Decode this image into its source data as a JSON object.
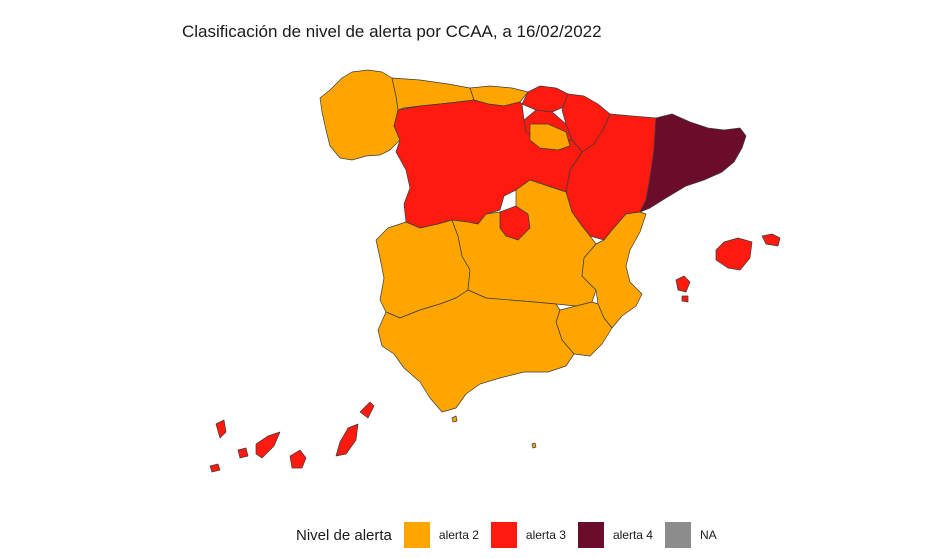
{
  "title": "Clasificación de nivel de alerta por CCAA, a 16/02/2022",
  "legend": {
    "title": "Nivel de alerta",
    "items": [
      {
        "key": "alerta2",
        "label": "alerta 2",
        "color": "#FFA500"
      },
      {
        "key": "alerta3",
        "label": "alerta 3",
        "color": "#FF1A10"
      },
      {
        "key": "alerta4",
        "label": "alerta 4",
        "color": "#6B0D2A"
      },
      {
        "key": "na",
        "label": "NA",
        "color": "#8C8C8C"
      }
    ]
  },
  "regions": {
    "galicia": "alerta2",
    "asturias": "alerta2",
    "cantabria": "alerta2",
    "pais_vasco": "alerta3",
    "navarra": "alerta3",
    "la_rioja": "alerta3",
    "aragon": "alerta3",
    "cataluna": "alerta4",
    "castilla_y_leon": "alerta3",
    "burgos_enclave": "alerta2",
    "madrid": "alerta3",
    "castilla_la_mancha": "alerta2",
    "extremadura": "alerta2",
    "comunidad_valenciana": "alerta2",
    "murcia": "alerta2",
    "andalucia": "alerta2",
    "baleares": "alerta3",
    "canarias": "alerta3",
    "ceuta": "alerta2",
    "melilla": "alerta2"
  }
}
